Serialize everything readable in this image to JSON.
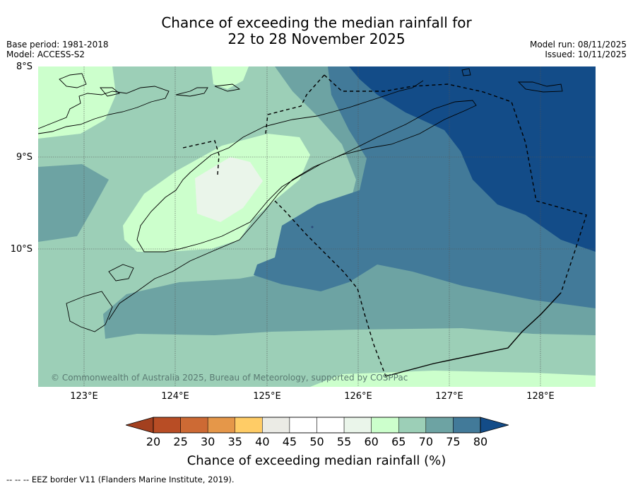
{
  "title": {
    "line1": "Chance of exceeding the median rainfall for",
    "line2": "22 to 28 November 2025"
  },
  "meta": {
    "base_period": "Base period: 1981-2018",
    "model": "Model: ACCESS-S2",
    "model_run": "Model run: 08/11/2025",
    "issued": "Issued: 10/11/2025"
  },
  "map": {
    "lat_labels": [
      "8°S",
      "9°S",
      "10°S"
    ],
    "lon_labels": [
      "123°E",
      "124°E",
      "125°E",
      "126°E",
      "127°E",
      "128°E"
    ],
    "copyright": "© Commonwealth of Australia 2025, Bureau of Meteorology, supported by COSPPac",
    "zone_fill_colors": {
      "c55_60": "#eaf5ea",
      "c60_65": "#ccffcc",
      "c65_70": "#9ccfb7",
      "c70_75": "#6da3a3",
      "c75_80": "#427a99",
      "c80_plus": "#134c88"
    }
  },
  "colorbar": {
    "ticks": [
      "20",
      "25",
      "30",
      "35",
      "40",
      "45",
      "50",
      "55",
      "60",
      "65",
      "70",
      "75",
      "80"
    ],
    "colors": [
      "#a3401f",
      "#b84d25",
      "#cd6a34",
      "#e59749",
      "#ffcc66",
      "#ebebe5",
      "#ffffff",
      "#ffffff",
      "#eaf5ea",
      "#ccffcc",
      "#9ccfb7",
      "#6da3a3",
      "#427a99",
      "#134c88"
    ],
    "label": "Chance of exceeding median rainfall (%)"
  },
  "footnote": "--  --  -- EEZ border V11 (Flanders Marine Institute, 2019)."
}
